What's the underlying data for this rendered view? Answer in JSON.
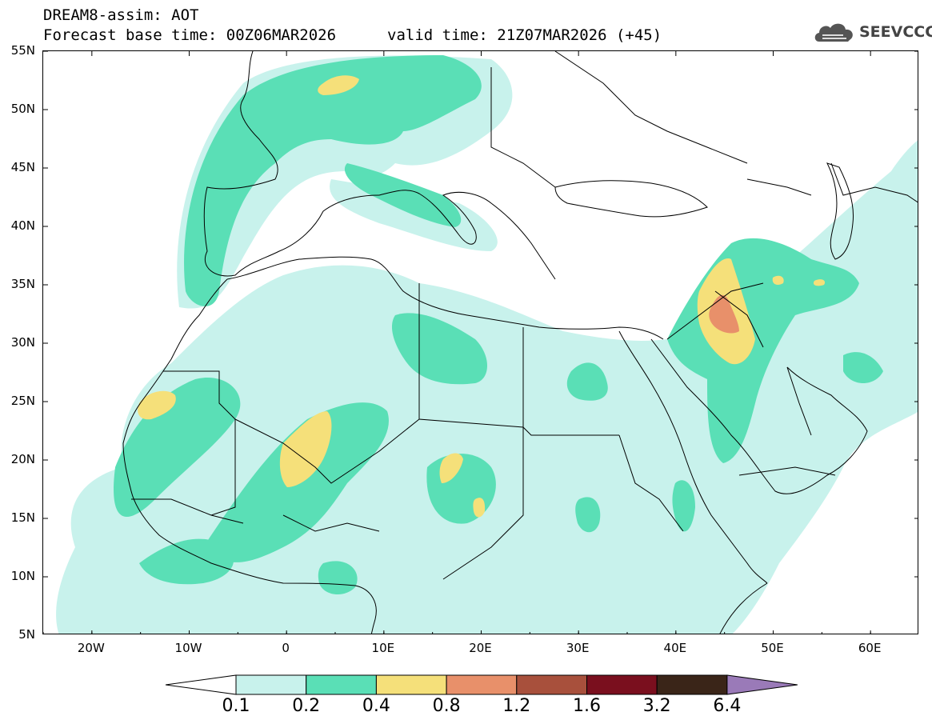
{
  "header": {
    "line1": "DREAM8-assim: AOT",
    "base_time": "Forecast base time: 00Z06MAR2026",
    "valid_time": "valid time: 21Z07MAR2026 (+45)"
  },
  "logo": {
    "text": "SEEVCCC",
    "icon": "cloud-icon"
  },
  "map": {
    "lat_labels": [
      "55N",
      "50N",
      "45N",
      "40N",
      "35N",
      "30N",
      "25N",
      "20N",
      "15N",
      "10N",
      "5N"
    ],
    "lon_labels": [
      "20W",
      "10W",
      "0",
      "10E",
      "20E",
      "30E",
      "40E",
      "50E",
      "60E"
    ],
    "lon_range": [
      -25,
      65
    ],
    "lat_range": [
      5,
      55
    ]
  },
  "legend": {
    "thresholds": [
      "0.1",
      "0.2",
      "0.4",
      "0.8",
      "1.2",
      "1.6",
      "3.2",
      "6.4"
    ],
    "colors": [
      "#c8f2ec",
      "#5adfb6",
      "#f5e07a",
      "#e8906a",
      "#a8503c",
      "#7a0f1e",
      "#3a2518",
      "#9a7ab8"
    ]
  }
}
